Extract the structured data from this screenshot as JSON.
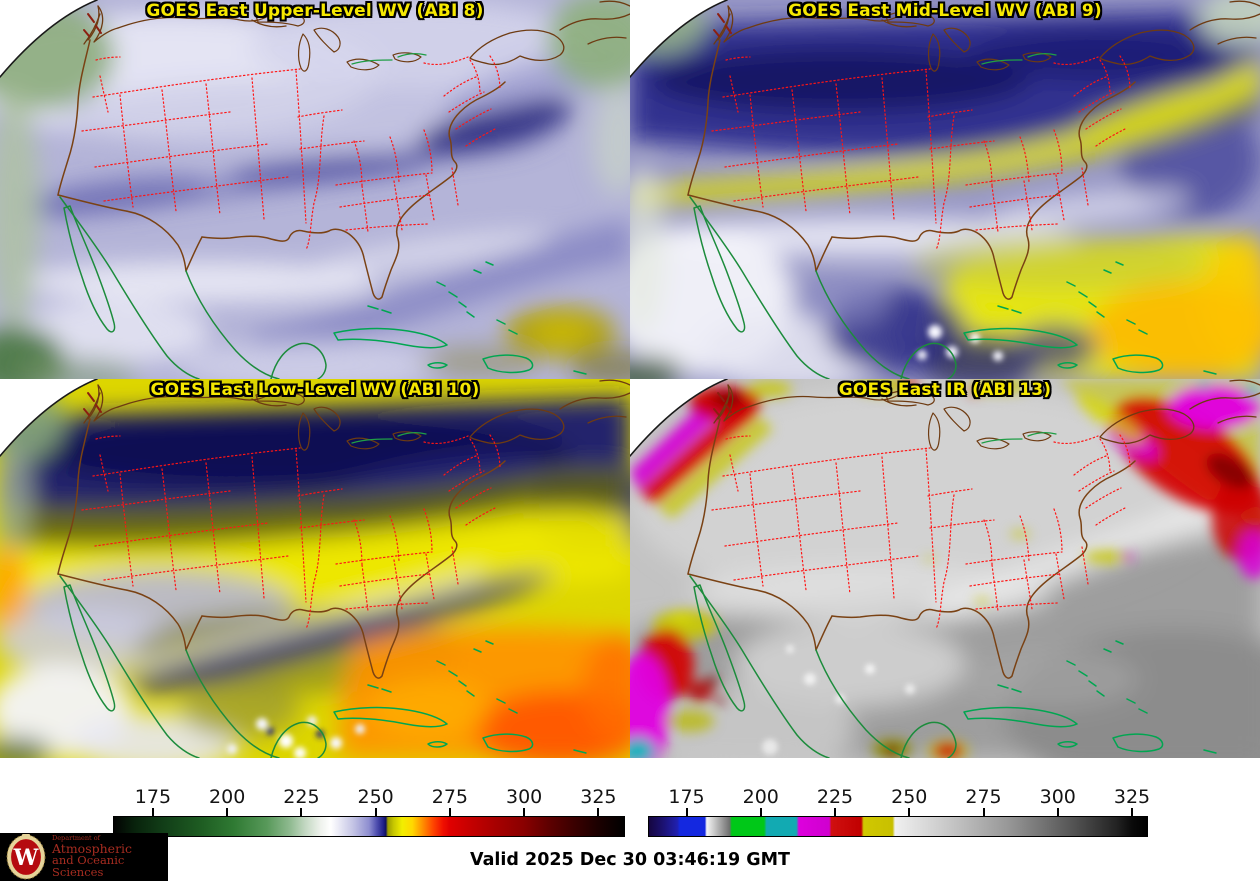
{
  "panels": [
    {
      "title": "GOES East Upper-Level WV (ABI 8)"
    },
    {
      "title": "GOES East Mid-Level WV (ABI 9)"
    },
    {
      "title": "GOES East Low-Level WV (ABI 10)"
    },
    {
      "title": "GOES East IR (ABI 13)"
    }
  ],
  "style": {
    "panel_title_color": "#f6e800",
    "panel_title_outline": "#000000",
    "state_border_color": "#ff1515",
    "us_coast_color": "#7a4214",
    "mexico_coast_color": "#1c8c3c",
    "caribbean_coast_color": "#00a651",
    "scan_edge_color": "#1a1a1a"
  },
  "colorbars": [
    {
      "name": "water-vapor-brightness-temperature",
      "ticks": [
        {
          "label": "175",
          "pct": 7.8
        },
        {
          "label": "200",
          "pct": 22.3
        },
        {
          "label": "225",
          "pct": 36.8
        },
        {
          "label": "250",
          "pct": 51.3
        },
        {
          "label": "275",
          "pct": 65.8
        },
        {
          "label": "300",
          "pct": 80.3
        },
        {
          "label": "325",
          "pct": 94.8
        }
      ],
      "stops": [
        [
          0,
          "#020202"
        ],
        [
          0.04,
          "#08220c"
        ],
        [
          0.1,
          "#123f18"
        ],
        [
          0.17,
          "#1e5c22"
        ],
        [
          0.235,
          "#2f7a33"
        ],
        [
          0.3,
          "#58995a"
        ],
        [
          0.345,
          "#8fba90"
        ],
        [
          0.375,
          "#c3d8c2"
        ],
        [
          0.405,
          "#eef2ec"
        ],
        [
          0.425,
          "#ffffff"
        ],
        [
          0.447,
          "#e2e2f2"
        ],
        [
          0.47,
          "#c2c2e4"
        ],
        [
          0.5,
          "#8e8ed0"
        ],
        [
          0.515,
          "#5050b0"
        ],
        [
          0.528,
          "#202088"
        ],
        [
          0.533,
          "#11115e"
        ],
        [
          0.537,
          "#9c9c00"
        ],
        [
          0.548,
          "#c6c600"
        ],
        [
          0.565,
          "#f2ee00"
        ],
        [
          0.585,
          "#ffd800"
        ],
        [
          0.605,
          "#ff9000"
        ],
        [
          0.625,
          "#ff4800"
        ],
        [
          0.645,
          "#f01000"
        ],
        [
          0.658,
          "#e00000"
        ],
        [
          0.7,
          "#c40000"
        ],
        [
          0.75,
          "#a60000"
        ],
        [
          0.803,
          "#8a0000"
        ],
        [
          0.85,
          "#600000"
        ],
        [
          0.9,
          "#3c0000"
        ],
        [
          0.948,
          "#1c0000"
        ],
        [
          1,
          "#000000"
        ]
      ]
    },
    {
      "name": "infrared-brightness-temperature",
      "ticks": [
        {
          "label": "175",
          "pct": 7.7
        },
        {
          "label": "200",
          "pct": 22.55
        },
        {
          "label": "225",
          "pct": 37.4
        },
        {
          "label": "250",
          "pct": 52.25
        },
        {
          "label": "275",
          "pct": 67.1
        },
        {
          "label": "300",
          "pct": 81.95
        },
        {
          "label": "325",
          "pct": 96.8
        }
      ],
      "stops": [
        [
          0,
          "#150640"
        ],
        [
          0.03,
          "#1c1275"
        ],
        [
          0.057,
          "#2020b0"
        ],
        [
          0.062,
          "#1428e0"
        ],
        [
          0.112,
          "#1428e0"
        ],
        [
          0.116,
          "#f5f5f5"
        ],
        [
          0.162,
          "#6f6f6f"
        ],
        [
          0.166,
          "#00c818"
        ],
        [
          0.231,
          "#00c818"
        ],
        [
          0.236,
          "#12aab2"
        ],
        [
          0.296,
          "#12aab2"
        ],
        [
          0.301,
          "#dd00dd"
        ],
        [
          0.362,
          "#cf00cf"
        ],
        [
          0.366,
          "#d01010"
        ],
        [
          0.426,
          "#c00000"
        ],
        [
          0.431,
          "#d0c800"
        ],
        [
          0.489,
          "#c8c000"
        ],
        [
          0.494,
          "#f0f0f0"
        ],
        [
          0.6,
          "#c8c8c8"
        ],
        [
          0.72,
          "#989898"
        ],
        [
          0.84,
          "#5a5a5a"
        ],
        [
          0.94,
          "#222222"
        ],
        [
          0.97,
          "#0a0a0a"
        ],
        [
          1,
          "#000000"
        ]
      ]
    }
  ],
  "footer": {
    "valid_time": "Valid 2025 Dec 30 03:46:19 GMT"
  },
  "logo": {
    "dept": "Department of",
    "line1": "Atmospheric",
    "line2": "and Oceanic Sciences",
    "crest_letter": "W",
    "text_color": "#a62c20",
    "bg_color": "#000000",
    "crest_red": "#b50b10",
    "crest_gold": "#e6d49a"
  }
}
